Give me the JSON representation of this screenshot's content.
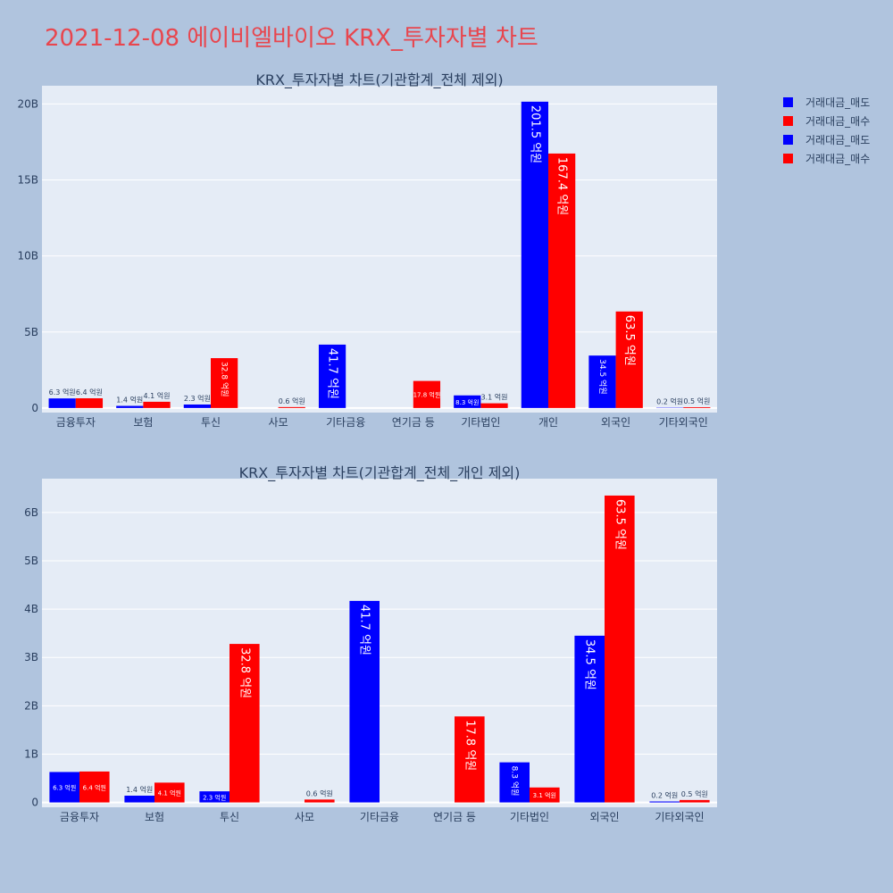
{
  "page": {
    "title": "2021-12-08 에이비엘바이오 KRX_투자자별 차트"
  },
  "legend": [
    {
      "name": "거래대금_매도",
      "color": "#0000ff"
    },
    {
      "name": "거래대금_매수",
      "color": "#ff0000"
    },
    {
      "name": "거래대금_매도",
      "color": "#0000ff"
    },
    {
      "name": "거래대금_매수",
      "color": "#ff0000"
    }
  ],
  "colors": {
    "sell": "#0000ff",
    "buy": "#ff0000",
    "plot_bg": "#e5ecf6",
    "page_bg": "#b0c4de"
  },
  "chart_data": [
    {
      "type": "bar",
      "title": "KRX_투자자별 차트(기관합계_전체 제외)",
      "categories": [
        "금융투자",
        "보험",
        "투신",
        "사모",
        "기타금융",
        "연기금 등",
        "기타법인",
        "개인",
        "외국인",
        "기타외국인"
      ],
      "series": [
        {
          "name": "거래대금_매도",
          "values": [
            630000000,
            140000000,
            230000000,
            0,
            4170000000,
            0,
            830000000,
            20150000000,
            3450000000,
            20000000
          ],
          "labels": [
            "6.3 억원",
            "1.4 억원",
            "2.3 억원",
            "",
            "41.7 억원",
            "",
            "8.3 억원",
            "201.5 억원",
            "34.5 억원",
            "0.2 억원"
          ]
        },
        {
          "name": "거래대금_매수",
          "values": [
            640000000,
            410000000,
            3280000000,
            60000000,
            0,
            1780000000,
            310000000,
            16740000000,
            6350000000,
            50000000
          ],
          "labels": [
            "6.4 억원",
            "4.1 억원",
            "32.8 억원",
            "0.6 억원",
            "",
            "17.8 억원",
            "3.1 억원",
            "167.4 억원",
            "63.5 억원",
            "0.5 억원"
          ]
        }
      ],
      "yticks": [
        0,
        5000000000,
        10000000000,
        15000000000,
        20000000000
      ],
      "ytick_labels": [
        "0",
        "5B",
        "10B",
        "15B",
        "20B"
      ],
      "ylim": [
        -300000000,
        21200000000
      ]
    },
    {
      "type": "bar",
      "title": "KRX_투자자별 차트(기관합계_전체_개인 제외)",
      "categories": [
        "금융투자",
        "보험",
        "투신",
        "사모",
        "기타금융",
        "연기금 등",
        "기타법인",
        "외국인",
        "기타외국인"
      ],
      "series": [
        {
          "name": "거래대금_매도",
          "values": [
            630000000,
            140000000,
            230000000,
            0,
            4170000000,
            0,
            830000000,
            3450000000,
            20000000
          ],
          "labels": [
            "6.3 억원",
            "1.4 억원",
            "2.3 억원",
            "",
            "41.7 억원",
            "",
            "8.3 억원",
            "34.5 억원",
            "0.2 억원"
          ]
        },
        {
          "name": "거래대금_매수",
          "values": [
            640000000,
            410000000,
            3280000000,
            60000000,
            0,
            1780000000,
            310000000,
            6350000000,
            50000000
          ],
          "labels": [
            "6.4 억원",
            "4.1 억원",
            "32.8 억원",
            "0.6 억원",
            "",
            "17.8 억원",
            "3.1 억원",
            "63.5 억원",
            "0.5 억원"
          ]
        }
      ],
      "yticks": [
        0,
        1000000000,
        2000000000,
        3000000000,
        4000000000,
        5000000000,
        6000000000
      ],
      "ytick_labels": [
        "0",
        "1B",
        "2B",
        "3B",
        "4B",
        "5B",
        "6B"
      ],
      "ylim": [
        -100000000,
        6700000000
      ]
    }
  ]
}
